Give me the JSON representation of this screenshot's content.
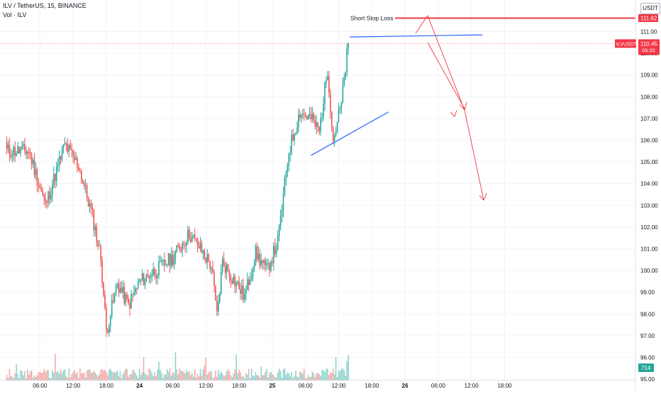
{
  "header": {
    "title": "ILV / TetherUS, 15, BINANCE",
    "volume_label": "Vol · ILV"
  },
  "currency": "USDT",
  "price_axis": {
    "ticks": [
      "111.00",
      "110.00",
      "109.00",
      "108.00",
      "107.00",
      "106.00",
      "105.00",
      "104.00",
      "103.00",
      "102.00",
      "101.00",
      "100.00",
      "99.00",
      "98.00",
      "97.00",
      "96.00",
      "95.00"
    ],
    "current_symbol": "ILVUSDT",
    "current_price": "110.45",
    "countdown": "09:35",
    "stop_value": "111.62",
    "volume_value": "714"
  },
  "time_axis": {
    "labels": [
      "06:00",
      "12:00",
      "18:00",
      "24",
      "06:00",
      "12:00",
      "18:00",
      "25",
      "06:00",
      "12:00",
      "18:00",
      "26",
      "06:00",
      "12:00",
      "18:00"
    ]
  },
  "annotations": {
    "stop_loss_label": "Short Stop Loss"
  },
  "colors": {
    "up": "#26a69a",
    "down": "#ef5350",
    "vol_up": "#8fd3cc",
    "vol_down": "#f7a9a7",
    "stop_line": "#f23645",
    "trend_line": "#2962ff",
    "arrow": "#f23645",
    "grid": "#f0f3fa"
  },
  "chart_data": {
    "type": "candlestick",
    "symbol": "ILV / TetherUS",
    "interval": "15",
    "exchange": "BINANCE",
    "ylim": [
      95,
      111.9
    ],
    "y_ticks": [
      95,
      96,
      97,
      98,
      99,
      100,
      101,
      102,
      103,
      104,
      105,
      106,
      107,
      108,
      109,
      110,
      111
    ],
    "close_anchors": [
      {
        "t": "23 04:00",
        "close": 105.5
      },
      {
        "t": "23 07:00",
        "close": 103.0
      },
      {
        "t": "23 10:30",
        "close": 105.8
      },
      {
        "t": "23 13:00",
        "close": 104.8
      },
      {
        "t": "23 15:30",
        "close": 102.5
      },
      {
        "t": "23 17:00",
        "close": 100.6
      },
      {
        "t": "23 18:00",
        "close": 97.2
      },
      {
        "t": "23 20:00",
        "close": 99.4
      },
      {
        "t": "23 22:00",
        "close": 98.4
      },
      {
        "t": "24 00:00",
        "close": 99.5
      },
      {
        "t": "24 03:00",
        "close": 100.0
      },
      {
        "t": "24 06:00",
        "close": 100.6
      },
      {
        "t": "24 09:00",
        "close": 101.7
      },
      {
        "t": "24 11:00",
        "close": 101.0
      },
      {
        "t": "24 13:00",
        "close": 100.2
      },
      {
        "t": "24 14:00",
        "close": 97.9
      },
      {
        "t": "24 15:00",
        "close": 100.4
      },
      {
        "t": "24 17:00",
        "close": 99.6
      },
      {
        "t": "24 19:00",
        "close": 98.8
      },
      {
        "t": "24 21:00",
        "close": 100.8
      },
      {
        "t": "24 23:00",
        "close": 100.0
      },
      {
        "t": "25 01:00",
        "close": 101.3
      },
      {
        "t": "25 03:00",
        "close": 105.5
      },
      {
        "t": "25 05:00",
        "close": 107.3
      },
      {
        "t": "25 07:00",
        "close": 107.0
      },
      {
        "t": "25 08:30",
        "close": 106.4
      },
      {
        "t": "25 10:00",
        "close": 109.3
      },
      {
        "t": "25 11:00",
        "close": 106.0
      },
      {
        "t": "25 12:30",
        "close": 107.7
      },
      {
        "t": "25 13:45",
        "close": 110.45
      }
    ],
    "last_price": 110.45,
    "last_volume": 714,
    "annotation_lines": {
      "stop_loss": {
        "label": "Short Stop Loss",
        "price": 111.62
      },
      "resistance": {
        "from": {
          "t": "25 14:00",
          "price": 110.75
        },
        "to": {
          "t": "26 14:00",
          "price": 110.85
        }
      },
      "support": {
        "from": {
          "t": "25 07:00",
          "price": 105.3
        },
        "to": {
          "t": "25 21:00",
          "price": 107.3
        }
      }
    }
  }
}
